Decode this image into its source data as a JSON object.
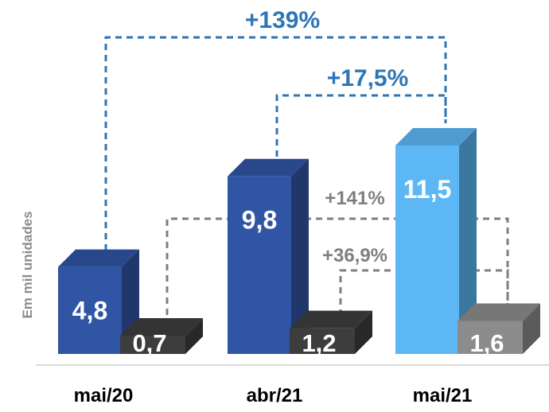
{
  "chart_data": {
    "type": "bar",
    "ylabel": "Em mil unidades",
    "categories": [
      "mai/20",
      "abr/21",
      "mai/21"
    ],
    "series": [
      {
        "values": [
          4.8,
          9.8,
          11.5
        ],
        "labels": [
          "4,8",
          "9,8",
          "11,5"
        ],
        "colors": [
          "#2f55a4",
          "#2f55a4",
          "#5db7f5"
        ]
      },
      {
        "values": [
          0.7,
          1.2,
          1.6
        ],
        "labels": [
          "0,7",
          "1,2",
          "1,6"
        ],
        "colors": [
          "#3d3d3d",
          "#3d3d3d",
          "#8c8c8c"
        ]
      }
    ],
    "ylim": [
      0,
      11.5
    ],
    "annotations": [
      {
        "text": "+139%",
        "from": "mai/20",
        "to": "mai/21",
        "series": 0,
        "color": "#2e75b6"
      },
      {
        "text": "+17,5%",
        "from": "abr/21",
        "to": "mai/21",
        "series": 0,
        "color": "#2e75b6"
      },
      {
        "text": "+141%",
        "from": "mai/20",
        "to": "mai/21",
        "series": 1,
        "color": "#7f7f7f"
      },
      {
        "text": "+36,9%",
        "from": "abr/21",
        "to": "mai/21",
        "series": 1,
        "color": "#7f7f7f"
      }
    ]
  }
}
